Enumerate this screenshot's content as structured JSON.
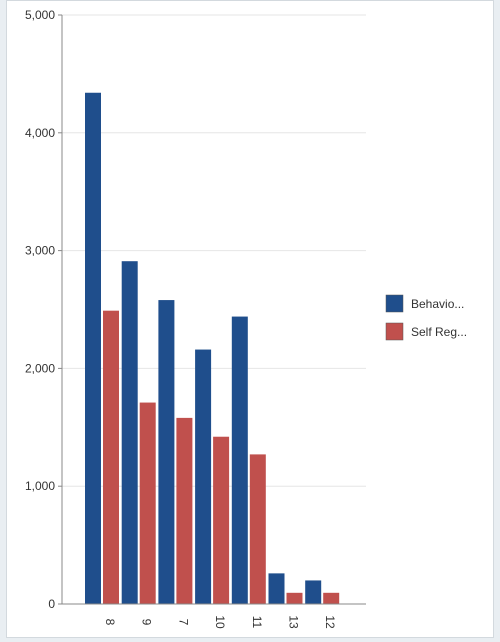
{
  "chart_data": {
    "type": "bar",
    "categories": [
      "8",
      "9",
      "7",
      "10",
      "11",
      "13",
      "12"
    ],
    "series": [
      {
        "name": "Behavio...",
        "color": "#1f4e8c",
        "values": [
          4340,
          2910,
          2580,
          2160,
          2440,
          260,
          200
        ]
      },
      {
        "name": "Self Reg...",
        "color": "#c0504d",
        "values": [
          2490,
          1710,
          1580,
          1420,
          1270,
          95,
          95
        ]
      }
    ],
    "y_ticks": [
      "0",
      "1,000",
      "2,000",
      "3,000",
      "4,000",
      "5,000"
    ],
    "ylim": [
      0,
      5000
    ],
    "grid": true,
    "legend_position": "right",
    "title": "",
    "xlabel": "",
    "ylabel": ""
  }
}
